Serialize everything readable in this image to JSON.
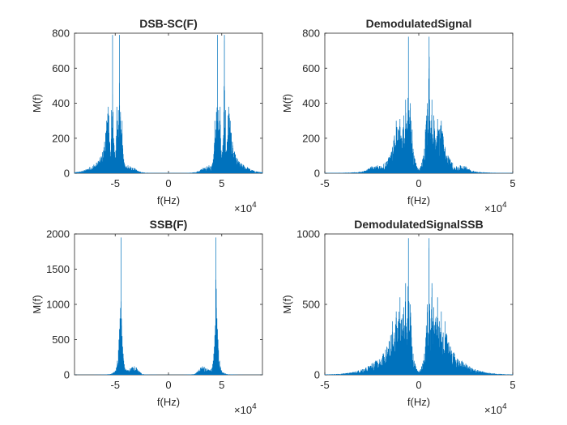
{
  "chart_data": [
    {
      "type": "line",
      "title": "DSB-SC(F)",
      "xlabel": "f(Hz)",
      "ylabel": "M(f)",
      "x_exponent_label": "×10",
      "x_exponent": "4",
      "xlim": [
        -88200,
        88200
      ],
      "ylim": [
        0,
        800
      ],
      "xticks": [
        -50000,
        0,
        50000
      ],
      "xtick_labels": [
        "-5",
        "0",
        "5"
      ],
      "yticks": [
        0,
        200,
        400,
        600,
        800
      ],
      "ytick_labels": [
        "0",
        "200",
        "400",
        "600",
        "800"
      ],
      "color": "#0072BD",
      "grid": false,
      "series": [
        {
          "x": [
            -88200,
            -80000,
            -74000,
            -70000,
            -66000,
            -62000,
            -60000,
            -59000,
            -58000,
            -57000,
            -56500,
            -56000,
            -55000,
            -54000,
            -53500,
            -53000,
            -52500,
            -52000,
            -51500,
            -51000,
            -50500,
            -50000,
            -49500,
            -49000,
            -48500,
            -48000,
            -47500,
            -47000,
            -46500,
            -46000,
            -45500,
            -45000,
            -44500,
            -44000,
            -43500,
            -43000,
            -42500,
            -42000,
            -41500,
            -41000,
            -40500,
            -40000,
            -39000,
            -38000,
            -36000,
            -34000,
            -32000,
            -30000,
            -27000,
            -24000,
            -20000,
            -15000,
            -10000,
            -5000,
            0,
            5000,
            10000,
            15000,
            20000,
            24000,
            27000,
            30000,
            32000,
            34000,
            36000,
            38000,
            39000,
            40000,
            40500,
            41000,
            41500,
            42000,
            42500,
            43000,
            43500,
            44000,
            44500,
            45000,
            45500,
            46000,
            46500,
            47000,
            47500,
            48000,
            48500,
            49000,
            49500,
            50000,
            50500,
            51000,
            51500,
            52000,
            52500,
            53000,
            53500,
            54000,
            55000,
            56000,
            56500,
            57000,
            58000,
            59000,
            60000,
            62000,
            66000,
            70000,
            74000,
            80000,
            88200
          ],
          "y": [
            5,
            15,
            35,
            50,
            70,
            120,
            180,
            230,
            300,
            340,
            380,
            330,
            180,
            120,
            360,
            260,
            790,
            350,
            200,
            160,
            120,
            90,
            130,
            200,
            380,
            300,
            250,
            360,
            200,
            790,
            300,
            350,
            250,
            200,
            300,
            160,
            110,
            80,
            60,
            50,
            40,
            35,
            40,
            45,
            40,
            30,
            30,
            20,
            10,
            5,
            3,
            2,
            2,
            2,
            2,
            2,
            2,
            2,
            3,
            5,
            10,
            20,
            30,
            30,
            40,
            45,
            40,
            35,
            40,
            50,
            60,
            80,
            110,
            160,
            300,
            200,
            250,
            350,
            300,
            790,
            200,
            360,
            250,
            300,
            380,
            200,
            130,
            90,
            120,
            160,
            200,
            350,
            790,
            260,
            360,
            120,
            180,
            330,
            380,
            340,
            300,
            230,
            180,
            120,
            70,
            50,
            35,
            15,
            5
          ]
        }
      ]
    },
    {
      "type": "line",
      "title": "DemodulatedSignal",
      "xlabel": "f(Hz)",
      "ylabel": "M(f)",
      "x_exponent_label": "×10",
      "x_exponent": "4",
      "xlim": [
        -50000,
        50000
      ],
      "ylim": [
        0,
        800
      ],
      "xticks": [
        -50000,
        0,
        50000
      ],
      "xtick_labels": [
        "-5",
        "0",
        "5"
      ],
      "yticks": [
        0,
        200,
        400,
        600,
        800
      ],
      "ytick_labels": [
        "0",
        "200",
        "400",
        "600",
        "800"
      ],
      "color": "#0072BD",
      "grid": false,
      "series": [
        {
          "x": [
            -50000,
            -40000,
            -35000,
            -30000,
            -27000,
            -25000,
            -22000,
            -20000,
            -18000,
            -16000,
            -14000,
            -13000,
            -12000,
            -11000,
            -10000,
            -9000,
            -8000,
            -7500,
            -7000,
            -6500,
            -6000,
            -5500,
            -5000,
            -4500,
            -4000,
            -3500,
            -3000,
            -2500,
            -2000,
            -1500,
            -1000,
            -500,
            0,
            500,
            1000,
            1500,
            2000,
            2500,
            3000,
            3500,
            4000,
            4500,
            5000,
            5500,
            6000,
            6500,
            7000,
            7500,
            8000,
            9000,
            10000,
            11000,
            12000,
            13000,
            14000,
            16000,
            18000,
            20000,
            22000,
            25000,
            27000,
            30000,
            35000,
            40000,
            50000
          ],
          "y": [
            2,
            3,
            5,
            10,
            25,
            40,
            45,
            40,
            60,
            90,
            150,
            210,
            300,
            250,
            310,
            200,
            330,
            200,
            420,
            260,
            300,
            780,
            250,
            400,
            300,
            250,
            140,
            100,
            80,
            60,
            40,
            30,
            20,
            30,
            40,
            60,
            80,
            100,
            140,
            250,
            300,
            400,
            250,
            780,
            300,
            260,
            420,
            200,
            330,
            200,
            310,
            250,
            300,
            210,
            150,
            90,
            60,
            40,
            45,
            40,
            25,
            10,
            5,
            3,
            2
          ]
        }
      ]
    },
    {
      "type": "line",
      "title": "SSB(F)",
      "xlabel": "f(Hz)",
      "ylabel": "M(f)",
      "x_exponent_label": "×10",
      "x_exponent": "4",
      "xlim": [
        -88200,
        88200
      ],
      "ylim": [
        0,
        2000
      ],
      "xticks": [
        -50000,
        0,
        50000
      ],
      "xtick_labels": [
        "-5",
        "0",
        "5"
      ],
      "yticks": [
        0,
        500,
        1000,
        1500,
        2000
      ],
      "ytick_labels": [
        "0",
        "500",
        "1000",
        "1500",
        "2000"
      ],
      "color": "#0072BD",
      "grid": false,
      "series": [
        {
          "x": [
            -88200,
            -70000,
            -60000,
            -55000,
            -52000,
            -50000,
            -49000,
            -48000,
            -47000,
            -46500,
            -46000,
            -45500,
            -45000,
            -44500,
            -44000,
            -43500,
            -43000,
            -42500,
            -42000,
            -41500,
            -41000,
            -40000,
            -39000,
            -38000,
            -36000,
            -34000,
            -32000,
            -30000,
            -28000,
            -26000,
            -24000,
            -20000,
            -15000,
            -10000,
            -5000,
            0,
            5000,
            10000,
            15000,
            20000,
            24000,
            26000,
            28000,
            30000,
            32000,
            34000,
            36000,
            38000,
            39000,
            40000,
            41000,
            41500,
            42000,
            42500,
            43000,
            43500,
            44000,
            44500,
            45000,
            45500,
            46000,
            46500,
            47000,
            48000,
            49000,
            50000,
            52000,
            55000,
            60000,
            70000,
            88200
          ],
          "y": [
            2,
            2,
            5,
            10,
            30,
            60,
            100,
            200,
            350,
            500,
            650,
            800,
            950,
            1950,
            700,
            550,
            400,
            300,
            200,
            150,
            100,
            80,
            60,
            70,
            90,
            110,
            120,
            100,
            60,
            30,
            10,
            5,
            3,
            2,
            2,
            2,
            2,
            2,
            3,
            5,
            10,
            30,
            60,
            100,
            120,
            110,
            90,
            70,
            60,
            80,
            100,
            150,
            200,
            300,
            400,
            550,
            700,
            1950,
            950,
            800,
            650,
            500,
            350,
            200,
            100,
            60,
            30,
            10,
            5,
            2,
            2
          ]
        }
      ]
    },
    {
      "type": "line",
      "title": "DemodulatedSignalSSB",
      "xlabel": "f(Hz)",
      "ylabel": "M(f)",
      "x_exponent_label": "×10",
      "x_exponent": "4",
      "xlim": [
        -50000,
        50000
      ],
      "ylim": [
        0,
        1000
      ],
      "xticks": [
        -50000,
        0,
        50000
      ],
      "xtick_labels": [
        "-5",
        "0",
        "5"
      ],
      "yticks": [
        0,
        500,
        1000
      ],
      "ytick_labels": [
        "0",
        "500",
        "1000"
      ],
      "color": "#0072BD",
      "grid": false,
      "series": [
        {
          "x": [
            -50000,
            -45000,
            -40000,
            -35000,
            -30000,
            -27000,
            -25000,
            -23000,
            -21000,
            -19000,
            -17000,
            -15000,
            -14000,
            -13000,
            -12000,
            -11000,
            -10000,
            -9000,
            -8000,
            -7500,
            -7000,
            -6500,
            -6000,
            -5500,
            -5000,
            -4500,
            -4000,
            -3500,
            -3000,
            -2500,
            -2000,
            -1500,
            -1000,
            -500,
            0,
            500,
            1000,
            1500,
            2000,
            2500,
            3000,
            3500,
            4000,
            4500,
            5000,
            5500,
            6000,
            6500,
            7000,
            7500,
            8000,
            9000,
            10000,
            11000,
            12000,
            13000,
            14000,
            15000,
            17000,
            19000,
            21000,
            23000,
            25000,
            27000,
            30000,
            35000,
            40000,
            45000,
            50000
          ],
          "y": [
            3,
            5,
            10,
            20,
            40,
            60,
            80,
            100,
            110,
            150,
            200,
            280,
            380,
            300,
            450,
            380,
            550,
            400,
            480,
            350,
            650,
            300,
            400,
            970,
            300,
            500,
            350,
            200,
            150,
            100,
            80,
            60,
            40,
            30,
            20,
            30,
            40,
            60,
            80,
            100,
            150,
            200,
            350,
            500,
            300,
            970,
            400,
            300,
            650,
            350,
            480,
            400,
            550,
            380,
            450,
            300,
            380,
            280,
            200,
            150,
            110,
            100,
            80,
            60,
            40,
            20,
            10,
            5,
            3
          ]
        }
      ]
    }
  ]
}
